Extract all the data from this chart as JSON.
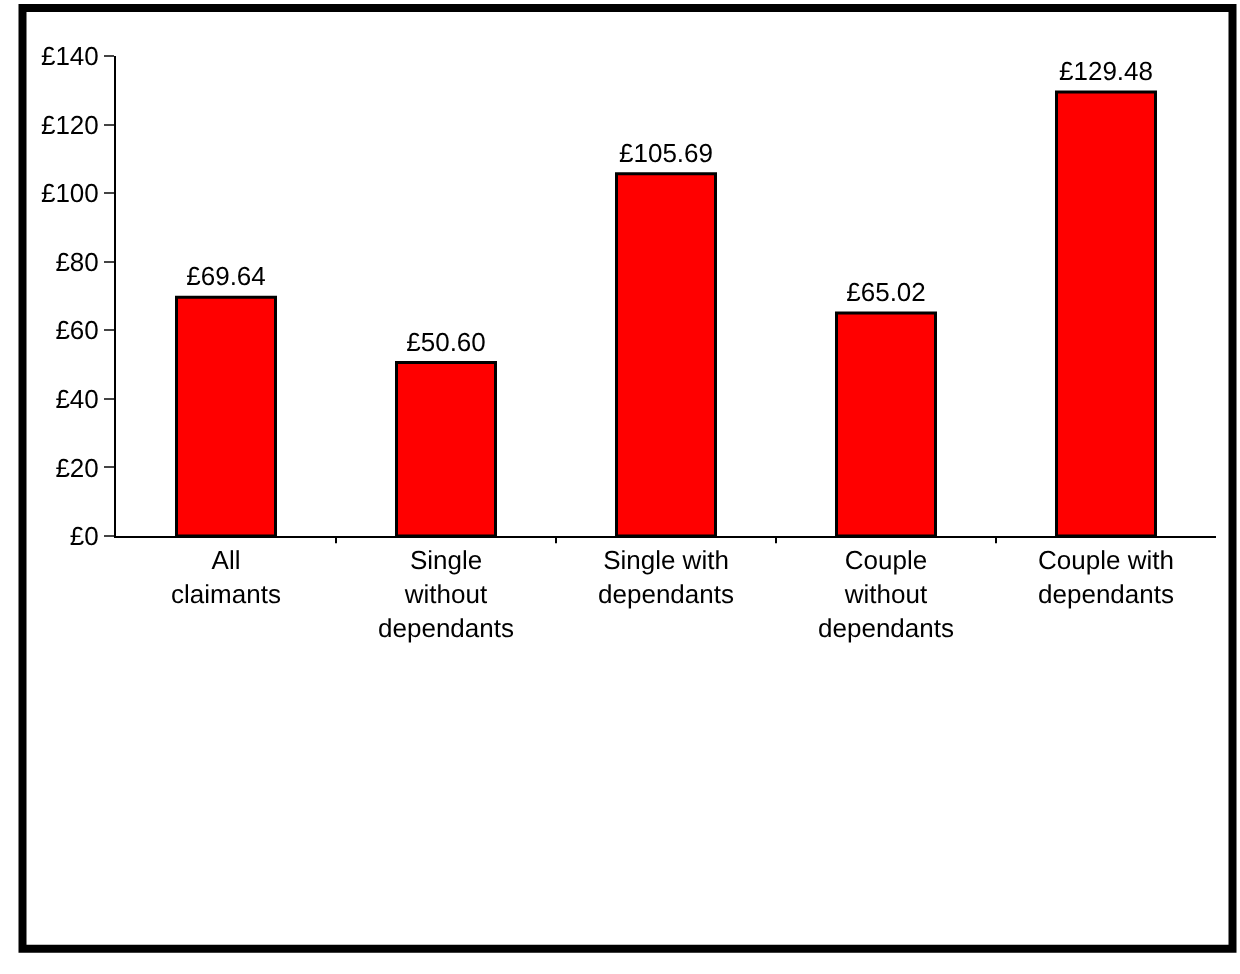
{
  "chart_data": {
    "type": "bar",
    "categories": [
      "All\nclaimants",
      "Single\nwithout\ndependants",
      "Single with\ndependants",
      "Couple\nwithout\ndependants",
      "Couple with\ndependants"
    ],
    "values": [
      69.64,
      50.6,
      105.69,
      65.02,
      129.48
    ],
    "value_labels": [
      "£69.64",
      "£50.60",
      "£105.69",
      "£65.02",
      "£129.48"
    ],
    "color": "#ff0000",
    "ylim": [
      0,
      140
    ],
    "yticks": [
      {
        "value": 0,
        "label": "£0"
      },
      {
        "value": 20,
        "label": "£20"
      },
      {
        "value": 40,
        "label": "£40"
      },
      {
        "value": 60,
        "label": "£60"
      },
      {
        "value": 80,
        "label": "£80"
      },
      {
        "value": 100,
        "label": "£100"
      },
      {
        "value": 120,
        "label": "£120"
      },
      {
        "value": 140,
        "label": "£140"
      }
    ],
    "legend": false
  }
}
